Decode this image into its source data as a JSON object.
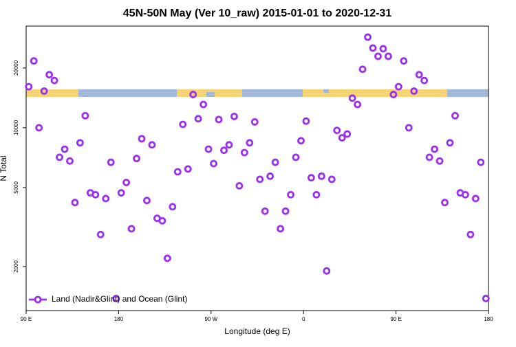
{
  "chart_data": {
    "type": "scatter",
    "title": "45N-50N May (Ver 10_raw)   2015-01-01 to 2020-12-31",
    "x_label": "Longitude (deg E)",
    "y_label": "N Total",
    "x": [
      92.5,
      97.5,
      102.5,
      107.5,
      112.5,
      117.5,
      122.5,
      127.5,
      132.5,
      137.5,
      142.5,
      147.5,
      152.5,
      157.5,
      162.5,
      167.5,
      172.5,
      177.5,
      182.5,
      187.5,
      192.5,
      197.5,
      202.5,
      207.5,
      212.5,
      217.5,
      222.5,
      227.5,
      232.5,
      237.5,
      242.5,
      247.5,
      252.5,
      257.5,
      262.5,
      267.5,
      272.5,
      277.5,
      282.5,
      287.5,
      292.5,
      297.5,
      302.5,
      307.5,
      312.5,
      317.5,
      322.5,
      327.5,
      332.5,
      337.5,
      342.5,
      347.5,
      352.5,
      357.5,
      362.5,
      367.5,
      372.5,
      377.5,
      382.5,
      387.5,
      392.5,
      397.5,
      402.5,
      407.5,
      412.5,
      417.5,
      422.5,
      427.5,
      432.5,
      437.5,
      442.5,
      447.5,
      452.5,
      457.5,
      462.5,
      467.5,
      472.5,
      477.5,
      482.5,
      487.5,
      492.5,
      497.5,
      502.5,
      507.5,
      512.5,
      517.5,
      522.5,
      527.5,
      532.5,
      537.5
    ],
    "series": [
      {
        "name": "Land (Nadir&Glint) and Ocean (Glint)",
        "color": "#9b2ff0",
        "values": [
          16100,
          21700,
          10000,
          15300,
          18500,
          17300,
          7100,
          7800,
          6800,
          4200,
          8400,
          11500,
          4700,
          4600,
          2900,
          4400,
          6700,
          1380,
          4700,
          5300,
          3100,
          7000,
          8800,
          4300,
          8200,
          3500,
          3400,
          2200,
          4000,
          6000,
          10400,
          6200,
          14700,
          11100,
          13100,
          7800,
          6600,
          11000,
          7700,
          8200,
          11400,
          5100,
          7500,
          8400,
          10700,
          5500,
          3800,
          5700,
          6700,
          3100,
          3800,
          4600,
          7100,
          8600,
          10800,
          5600,
          4600,
          5700,
          1900,
          5500,
          9700,
          8900,
          9300,
          14100,
          13100,
          19700,
          28600,
          25200,
          22900,
          25000,
          22900,
          14700,
          16100,
          21700,
          10000,
          15300,
          18500,
          17300,
          7100,
          7800,
          6800,
          4200,
          8400,
          11500,
          4700,
          4600,
          2900,
          4400,
          6700,
          1380
        ]
      }
    ],
    "xlim": [
      90,
      540
    ],
    "xticks": [
      {
        "value": 90,
        "label": "90 E"
      },
      {
        "value": 180,
        "label": "180"
      },
      {
        "value": 270,
        "label": "90 W"
      },
      {
        "value": 360,
        "label": "0"
      },
      {
        "value": 450,
        "label": "90 E"
      },
      {
        "value": 540,
        "label": "180"
      }
    ],
    "ylim": [
      1200,
      32500
    ],
    "yticks": [
      2000,
      5000,
      10000,
      20000
    ],
    "log_y": true,
    "legend": "bottom-left"
  }
}
